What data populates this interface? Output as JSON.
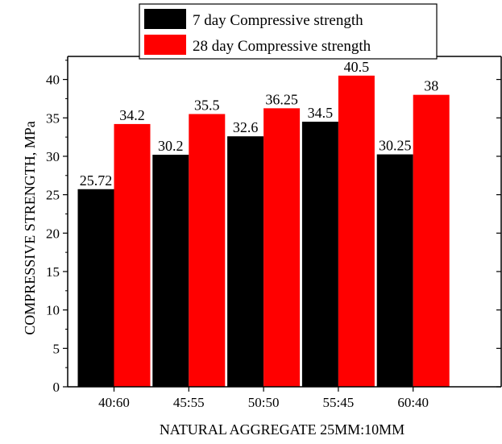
{
  "chart_data": {
    "type": "bar",
    "categories": [
      "40:60",
      "45:55",
      "50:50",
      "55:45",
      "60:40"
    ],
    "series": [
      {
        "name": "7 day Compressive strength",
        "color": "#000000",
        "values": [
          25.72,
          30.2,
          32.6,
          34.5,
          30.25
        ],
        "labels": [
          "25.72",
          "30.2",
          "32.6",
          "34.5",
          "30.25"
        ]
      },
      {
        "name": "28 day Compressive strength",
        "color": "#ff0000",
        "values": [
          34.2,
          35.5,
          36.25,
          40.5,
          38
        ],
        "labels": [
          "34.2",
          "35.5",
          "36.25",
          "40.5",
          "38"
        ]
      }
    ],
    "xlabel": "NATURAL AGGREGATE 25MM:10MM",
    "ylabel": "COMPRESSIVE STRENGTH, MPa",
    "ylim": [
      0,
      43
    ],
    "yticks": [
      0,
      5,
      10,
      15,
      20,
      25,
      30,
      35,
      40
    ],
    "legend_position": "top",
    "grid": false
  }
}
